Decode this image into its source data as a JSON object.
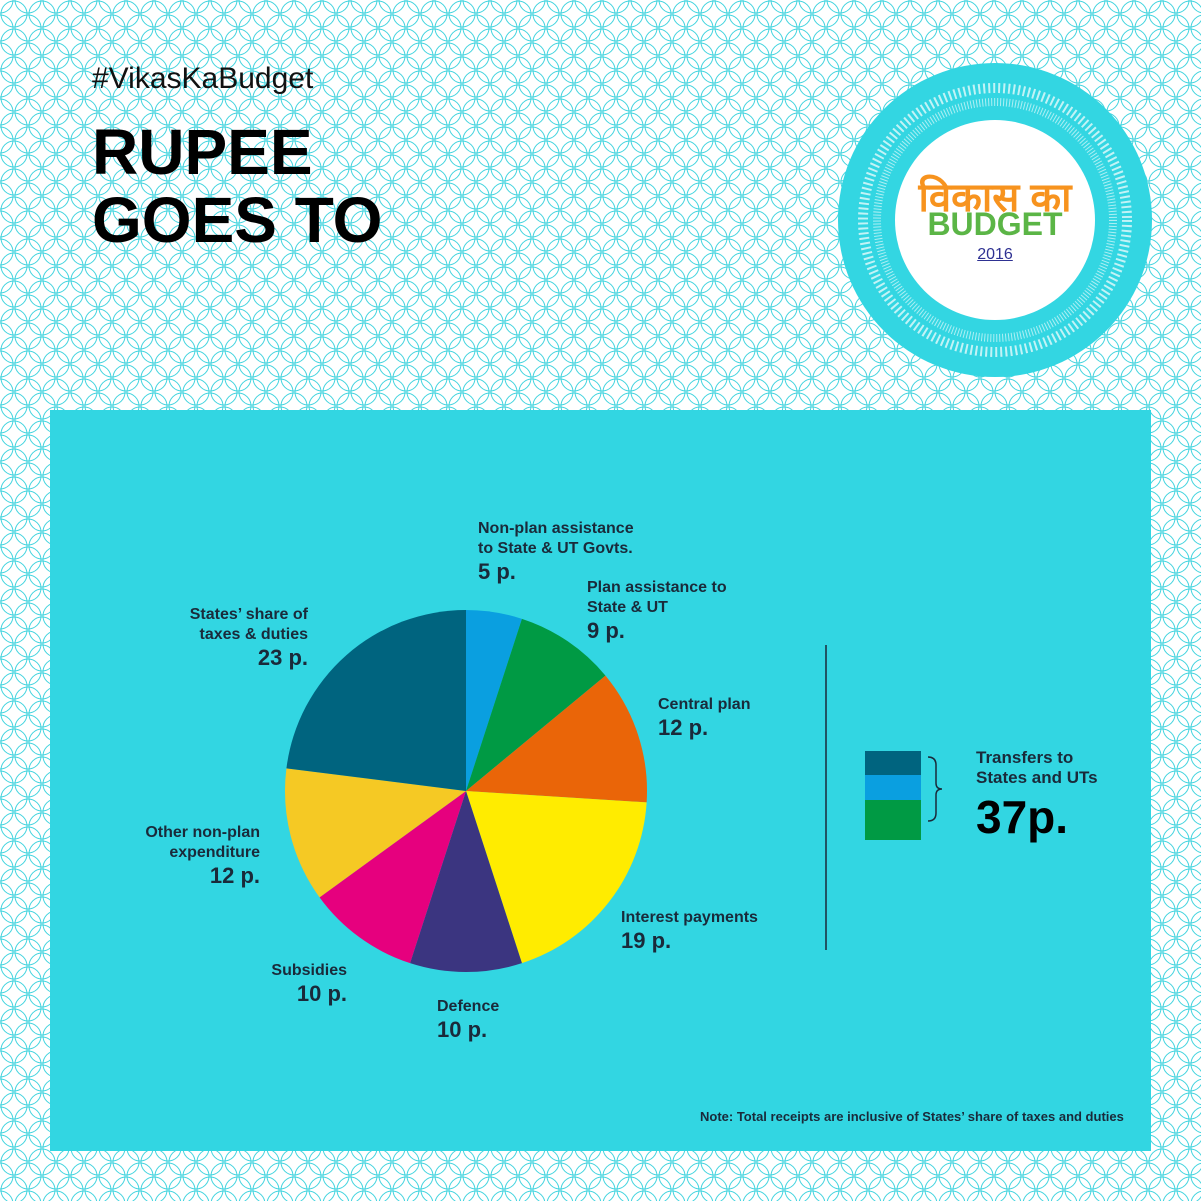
{
  "header": {
    "hashtag": "#VikasKaBudget",
    "title": "RUPEE\nGOES TO"
  },
  "logo": {
    "hindi": "विकास का",
    "english": "BUDGET",
    "year": "2016"
  },
  "chart_data": {
    "type": "pie",
    "categories": [
      "Non-plan assistance\nto State & UT Govts.",
      "Plan assistance to\nState & UT",
      "Central plan",
      "Interest payments",
      "Defence",
      "Subsidies",
      "Other non-plan\nexpenditure",
      "States’ share of\ntaxes & duties"
    ],
    "values": [
      5,
      9,
      12,
      19,
      10,
      10,
      12,
      23
    ],
    "value_labels": [
      "5 p.",
      "9 p.",
      "12 p.",
      "19 p.",
      "10 p.",
      "10 p.",
      "12 p.",
      "23 p."
    ],
    "colors": [
      "#0a9fe0",
      "#009a44",
      "#ea6508",
      "#ffec00",
      "#3b3580",
      "#e6007e",
      "#f5c924",
      "#00647f"
    ]
  },
  "summary": {
    "label": "Transfers to\nStates and UTs",
    "total": "37p."
  },
  "note": "Note: Total receipts are inclusive of States’ share of taxes and duties"
}
